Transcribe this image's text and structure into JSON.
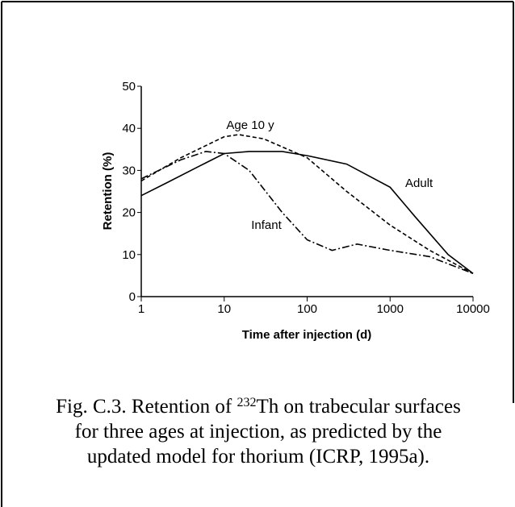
{
  "chart_data": {
    "type": "line",
    "xlabel": "Time after injection (d)",
    "ylabel": "Retention (%)",
    "log_x": true,
    "xlim": [
      1,
      10000
    ],
    "xticks": [
      1,
      10,
      100,
      1000,
      10000
    ],
    "ylim": [
      0,
      50
    ],
    "yticks": [
      0,
      10,
      20,
      30,
      40,
      50
    ],
    "grid": false,
    "series": [
      {
        "name": "Adult",
        "color": "#000000",
        "dash": "solid",
        "x": [
          1,
          2,
          5,
          10,
          20,
          50,
          100,
          300,
          1000,
          2000,
          5000,
          10000
        ],
        "values": [
          24,
          27,
          31,
          34,
          34.5,
          34.5,
          33.5,
          31.5,
          26,
          19,
          10,
          5.5
        ]
      },
      {
        "name": "Age 10 y",
        "color": "#000000",
        "dash": "short",
        "x": [
          1,
          3,
          10,
          15,
          30,
          100,
          300,
          1000,
          3000,
          10000
        ],
        "values": [
          27.5,
          33,
          38,
          38.5,
          37.5,
          33,
          25,
          17,
          11,
          5.5
        ]
      },
      {
        "name": "Infant",
        "color": "#000000",
        "dash": "long",
        "x": [
          1,
          3,
          6,
          10,
          20,
          50,
          100,
          200,
          400,
          1000,
          3000,
          10000
        ],
        "values": [
          28,
          32.5,
          34.5,
          34,
          30,
          20,
          13.5,
          11,
          12.5,
          11,
          9.5,
          5.5
        ]
      }
    ],
    "caption": [
      [
        "Fig. C.3.  Retention of ",
        "232",
        "Th on trabecular surfaces"
      ],
      [
        "for three ages at injection, as predicted by the"
      ],
      [
        "updated model for thorium (ICRP, 1995a)."
      ]
    ]
  }
}
